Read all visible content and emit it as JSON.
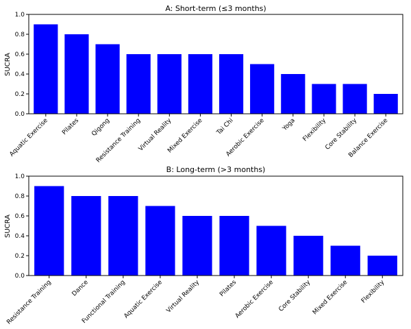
{
  "bar_color": "#0000ff",
  "chart_data": [
    {
      "type": "bar",
      "title": "A: Short-term (≤3 months)",
      "xlabel": "",
      "ylabel": "SUCRA",
      "ylim": [
        0,
        1.0
      ],
      "yticks": [
        "0.0",
        "0.2",
        "0.4",
        "0.6",
        "0.8",
        "1.0"
      ],
      "categories": [
        "Aquatic Exercise",
        "Pilates",
        "Qigong",
        "Resistance Training",
        "Virtual Reality",
        "Mixed Exercise",
        "Tai Chi",
        "Aerobic Exercise",
        "Yoga",
        "Flexibility",
        "Core Stability",
        "Balance Exercise"
      ],
      "values": [
        0.9,
        0.8,
        0.7,
        0.6,
        0.6,
        0.6,
        0.6,
        0.5,
        0.4,
        0.3,
        0.3,
        0.2
      ],
      "grid": false,
      "legend": "none"
    },
    {
      "type": "bar",
      "title": "B: Long-term (>3 months)",
      "xlabel": "",
      "ylabel": "SUCRA",
      "ylim": [
        0,
        1.0
      ],
      "yticks": [
        "0.0",
        "0.2",
        "0.4",
        "0.6",
        "0.8",
        "1.0"
      ],
      "categories": [
        "Resistance Training",
        "Dance",
        "Functional Training",
        "Aquatic Exercise",
        "Virtual Reality",
        "Pilates",
        "Aerobic Exercise",
        "Core Stability",
        "Mixed Exercise",
        "Flexibility"
      ],
      "values": [
        0.9,
        0.8,
        0.8,
        0.7,
        0.6,
        0.6,
        0.5,
        0.4,
        0.3,
        0.2
      ],
      "grid": false,
      "legend": "none"
    }
  ]
}
